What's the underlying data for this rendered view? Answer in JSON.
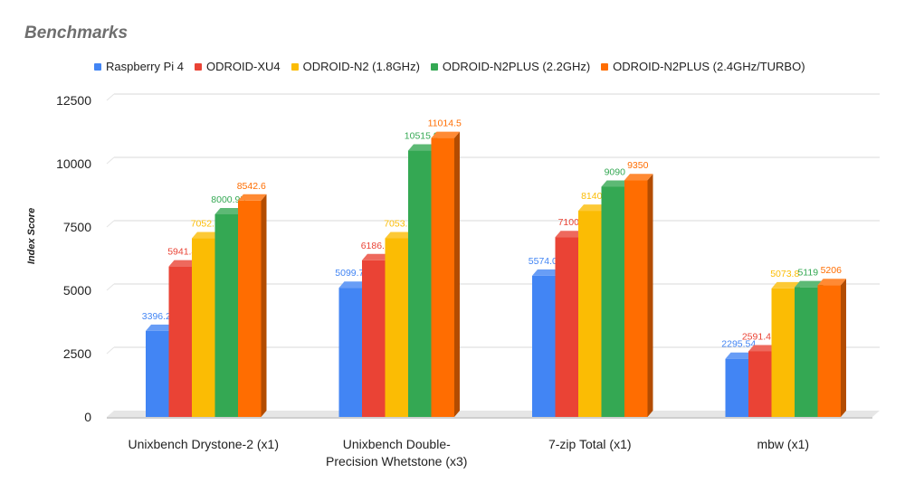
{
  "chart_data": {
    "type": "bar",
    "title": "Benchmarks",
    "ylabel": "Index Score",
    "xlabel": "",
    "ylim": [
      0,
      12500
    ],
    "yticks": [
      0,
      2500,
      5000,
      7500,
      10000,
      12500
    ],
    "grid": true,
    "legend_position": "top",
    "categories": [
      "Unixbench Drystone-2 (x1)",
      "Unixbench Double-Precision Whetstone (x3)",
      "7-zip Total (x1)",
      "mbw (x1)"
    ],
    "category_lines": [
      [
        "Unixbench Drystone-2 (x1)"
      ],
      [
        "Unixbench Double-",
        "Precision Whetstone (x3)"
      ],
      [
        "7-zip Total (x1)"
      ],
      [
        "mbw (x1)"
      ]
    ],
    "series": [
      {
        "name": "Raspberry Pi 4",
        "color": "#4285f4",
        "values": [
          3396.25,
          5099.7,
          5574.0,
          2295.54
        ],
        "labels": [
          "3396.25",
          "5099.70",
          "5574.00",
          "2295.54"
        ]
      },
      {
        "name": "ODROID-XU4",
        "color": "#ea4335",
        "values": [
          5941.4,
          6186.3,
          7100,
          2591.461
        ],
        "labels": [
          "5941.4",
          "6186.3",
          "7100",
          "2591.461"
        ]
      },
      {
        "name": "ODROID-N2 (1.8GHz)",
        "color": "#fbbc04",
        "values": [
          7052.1,
          7053.6,
          8140,
          5073.8
        ],
        "labels": [
          "7052.1",
          "7053.6",
          "8140",
          "5073.8"
        ]
      },
      {
        "name": "ODROID-N2PLUS (2.2GHz)",
        "color": "#34a853",
        "values": [
          8000.95,
          10515.9,
          9090,
          5119
        ],
        "labels": [
          "8000.95",
          "10515.9",
          "9090",
          "5119"
        ]
      },
      {
        "name": "ODROID-N2PLUS (2.4GHz/TURBO)",
        "color": "#ff6d01",
        "values": [
          8542.6,
          11014.5,
          9350,
          5206
        ],
        "labels": [
          "8542.6",
          "11014.5",
          "9350",
          "5206"
        ]
      }
    ]
  }
}
